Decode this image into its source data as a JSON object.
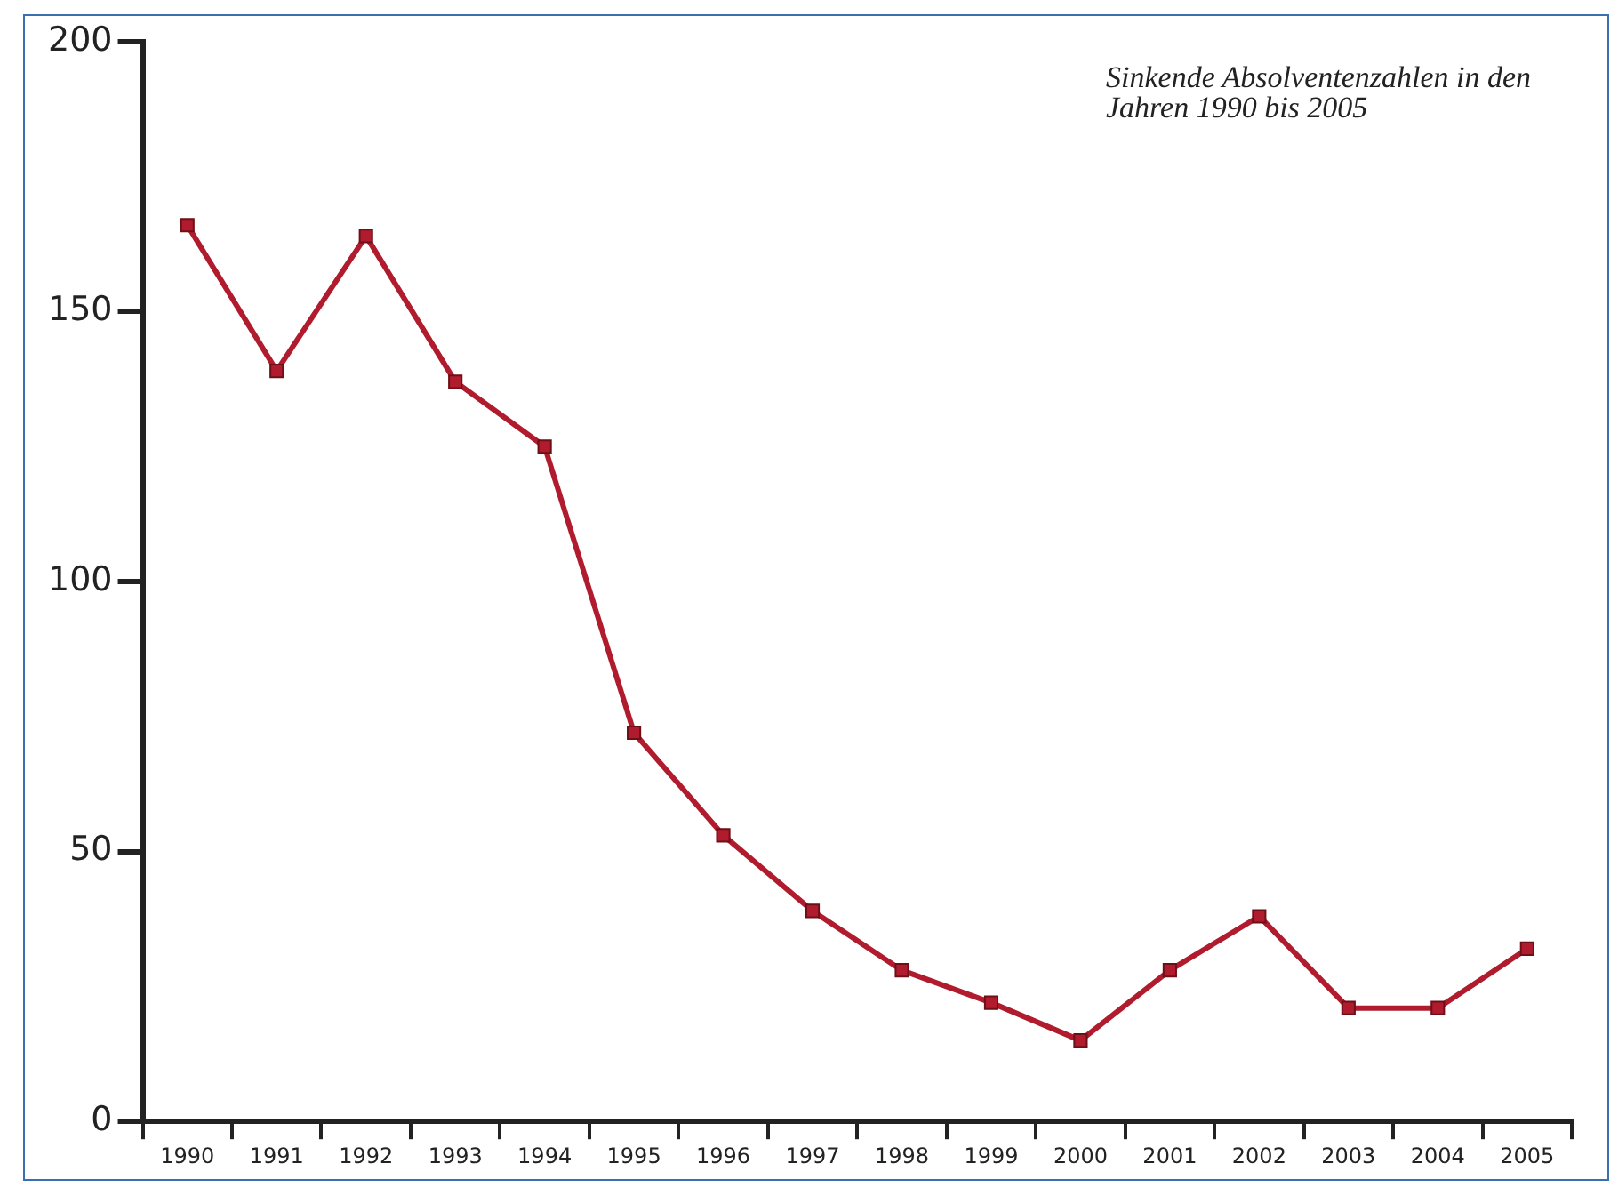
{
  "chart_data": {
    "type": "line",
    "annotations": [
      "Sinkende Absolventenzahlen in den Jahren 1990 bis 2005"
    ],
    "categories": [
      "1990",
      "1991",
      "1992",
      "1993",
      "1994",
      "1995",
      "1996",
      "1997",
      "1998",
      "1999",
      "2000",
      "2001",
      "2002",
      "2003",
      "2004",
      "2005"
    ],
    "series": [
      {
        "color": "#b01c2e",
        "values": [
          166,
          139,
          164,
          137,
          125,
          72,
          53,
          39,
          28,
          22,
          15,
          28,
          38,
          21,
          21,
          32
        ]
      }
    ],
    "ylim": [
      0,
      200
    ],
    "yticks": [
      0,
      50,
      100,
      150,
      200
    ],
    "grid": false,
    "legend": false,
    "marker": "square",
    "line_style": "solid"
  }
}
